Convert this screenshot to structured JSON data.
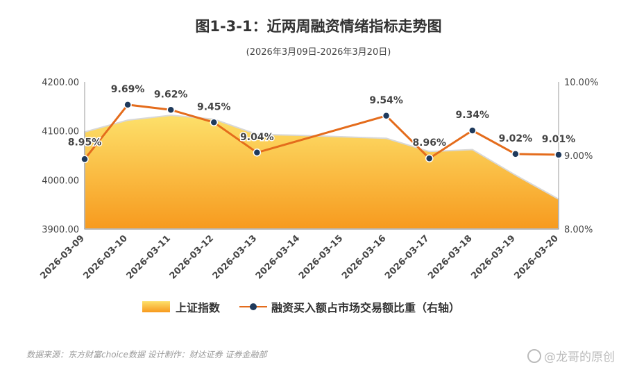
{
  "title": "图1-3-1：近两周融资情绪指标走势图",
  "subtitle": "(2026年3月09日-2026年3月20日)",
  "legend": {
    "area_label": "上证指数",
    "line_label": "融资买入额占市场交易额比重（右轴）"
  },
  "source": "数据来源：东方财富choice数据   设计制作：财达证券 证券金融部",
  "watermark": "@龙哥的原创",
  "chart_data": {
    "type": "area+line",
    "categories": [
      "2026-03-09",
      "2026-03-10",
      "2026-03-11",
      "2026-03-12",
      "2026-03-13",
      "2026-03-14",
      "2026-03-15",
      "2026-03-16",
      "2026-03-17",
      "2026-03-18",
      "2026-03-19",
      "2026-03-20"
    ],
    "left_axis": {
      "min": 3900,
      "max": 4200,
      "ticks": [
        "4200.00",
        "4100.00",
        "4000.00",
        "3900.00"
      ]
    },
    "right_axis": {
      "min": 8.0,
      "max": 10.0,
      "ticks": [
        "10.00%",
        "9.00%",
        "8.00%"
      ]
    },
    "series": [
      {
        "name": "上证指数",
        "type": "area",
        "axis": "left",
        "values": [
          4098,
          4122,
          4132,
          4124,
          4093,
          4091,
          4088,
          4085,
          4058,
          4062,
          4010,
          3961
        ]
      },
      {
        "name": "融资买入额占市场交易额比重（右轴）",
        "type": "line",
        "axis": "right",
        "values": [
          8.95,
          9.69,
          9.62,
          9.45,
          9.04,
          null,
          null,
          9.54,
          8.96,
          9.34,
          9.02,
          9.01
        ],
        "labels": [
          "8.95%",
          "9.69%",
          "9.62%",
          "9.45%",
          "9.04%",
          "",
          "",
          "9.54%",
          "8.96%",
          "9.34%",
          "9.02%",
          "9.01%"
        ]
      }
    ],
    "colors": {
      "area_top": "#fde06a",
      "area_bottom": "#f79a1e",
      "line": "#e46c1c",
      "marker": "#1f3a5c"
    },
    "grid": false,
    "legend_position": "bottom"
  }
}
